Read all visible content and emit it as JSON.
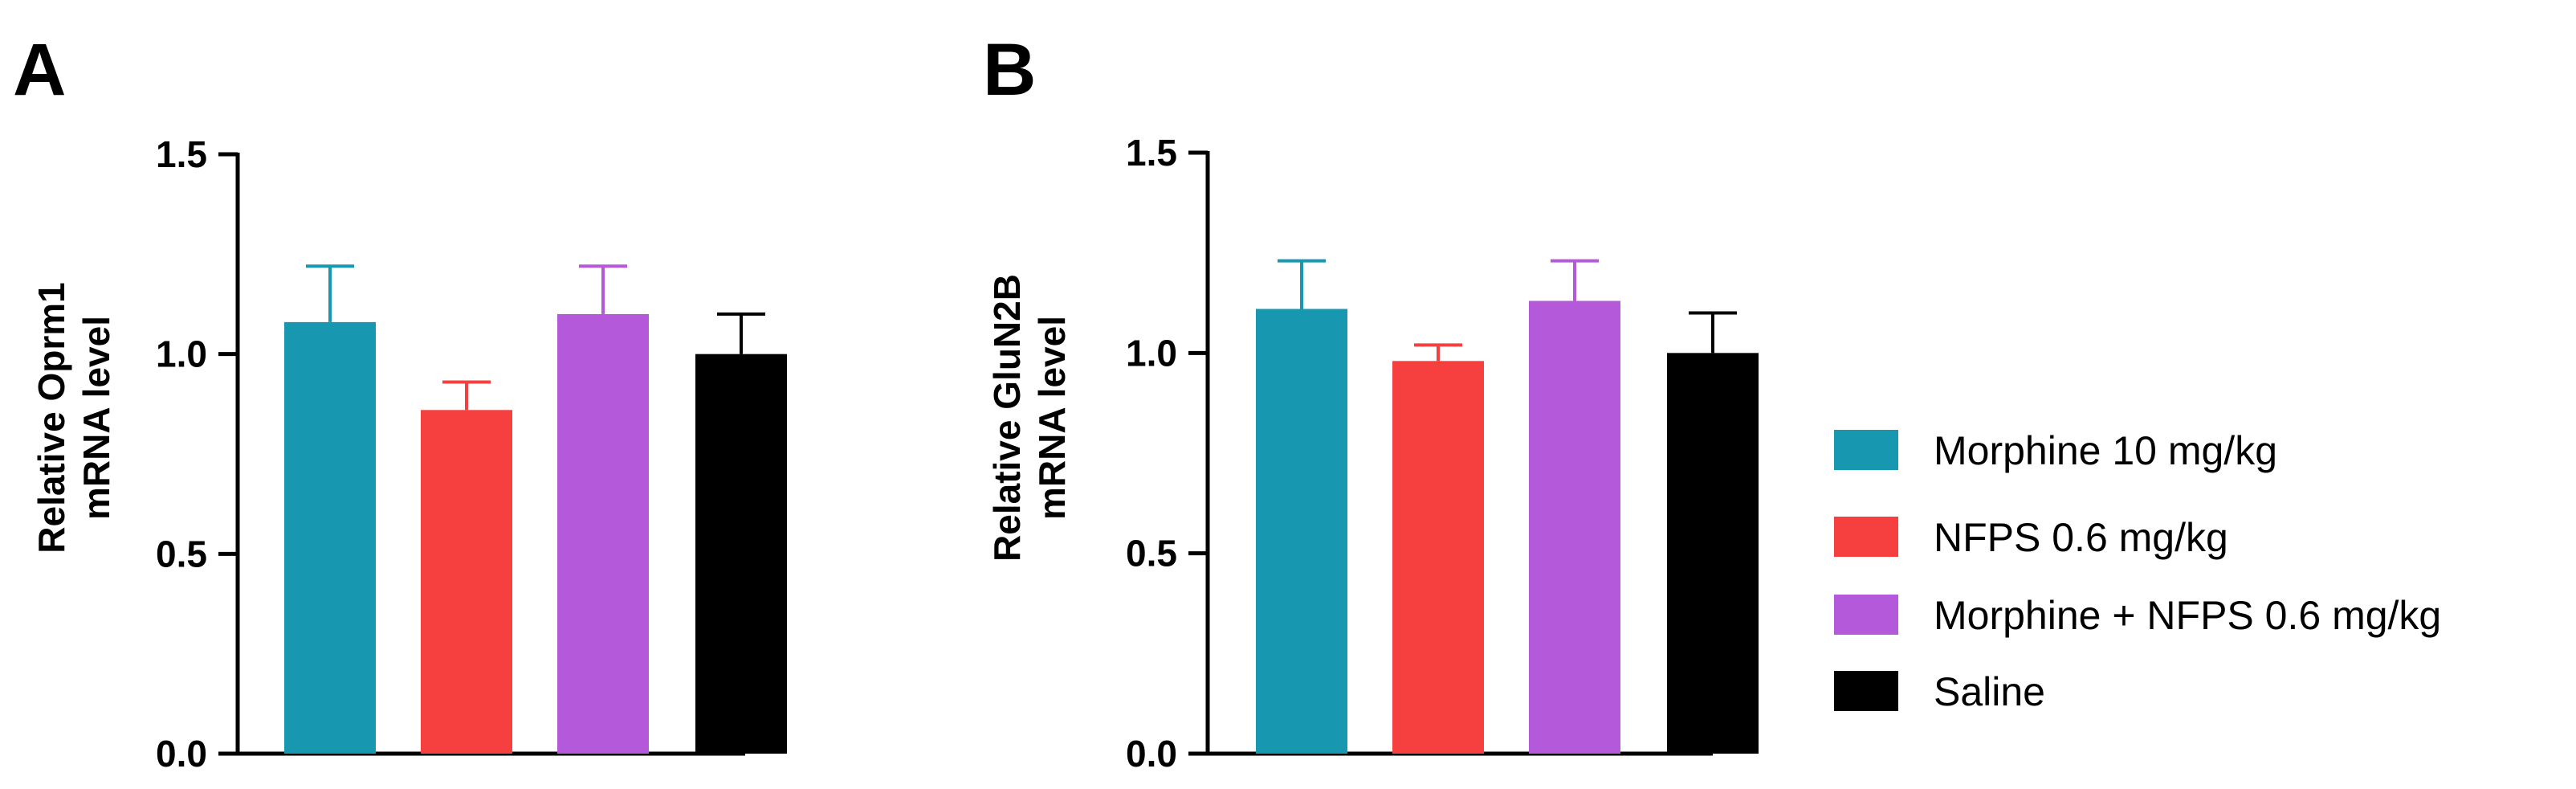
{
  "figure": {
    "panels": [
      "A",
      "B"
    ]
  },
  "legend": {
    "items": [
      {
        "label": "Morphine 10 mg/kg",
        "color": "#1798B0"
      },
      {
        "label": "NFPS 0.6 mg/kg",
        "color": "#F64040"
      },
      {
        "label": "Morphine + NFPS 0.6 mg/kg",
        "color": "#B459D9"
      },
      {
        "label": "Saline",
        "color": "#000000"
      }
    ]
  },
  "chart_data": [
    {
      "panel": "A",
      "type": "bar",
      "ylabel_lines": [
        "Relative Oprm1",
        "mRNA level"
      ],
      "ylim": [
        0,
        1.5
      ],
      "yticks": [
        0.0,
        0.5,
        1.0,
        1.5
      ],
      "ytick_labels": [
        "0.0",
        "0.5",
        "1.0",
        "1.5"
      ],
      "categories": [
        "Morphine 10 mg/kg",
        "NFPS 0.6 mg/kg",
        "Morphine + NFPS 0.6 mg/kg",
        "Saline"
      ],
      "values": [
        1.08,
        0.86,
        1.1,
        1.0
      ],
      "errors": [
        0.14,
        0.07,
        0.12,
        0.1
      ],
      "colors": [
        "#1798B0",
        "#F64040",
        "#B459D9",
        "#000000"
      ]
    },
    {
      "panel": "B",
      "type": "bar",
      "ylabel_lines": [
        "Relative GluN2B",
        "mRNA level"
      ],
      "ylim": [
        0,
        1.5
      ],
      "yticks": [
        0.0,
        0.5,
        1.0,
        1.5
      ],
      "ytick_labels": [
        "0.0",
        "0.5",
        "1.0",
        "1.5"
      ],
      "categories": [
        "Morphine 10 mg/kg",
        "NFPS 0.6 mg/kg",
        "Morphine + NFPS 0.6 mg/kg",
        "Saline"
      ],
      "values": [
        1.11,
        0.98,
        1.13,
        1.0
      ],
      "errors": [
        0.12,
        0.04,
        0.1,
        0.1
      ],
      "colors": [
        "#1798B0",
        "#F64040",
        "#B459D9",
        "#000000"
      ]
    }
  ]
}
